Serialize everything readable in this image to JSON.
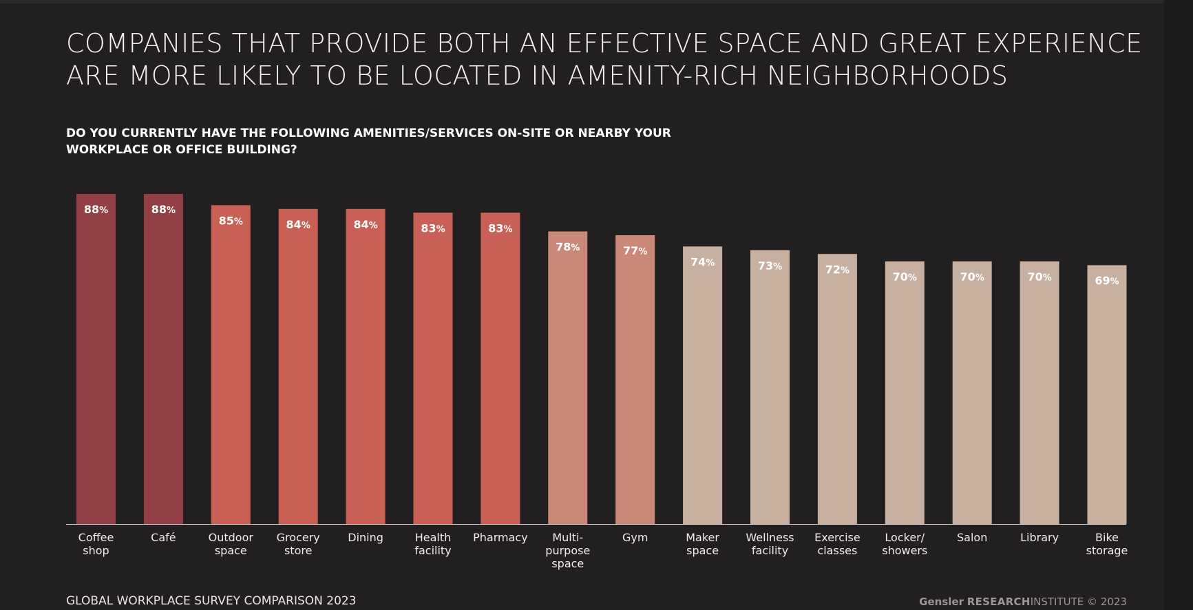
{
  "header": {
    "title_line1": "COMPANIES THAT PROVIDE BOTH AN EFFECTIVE SPACE AND GREAT EXPERIENCE",
    "title_line2": "ARE MORE LIKELY TO BE LOCATED IN AMENITY-RICH NEIGHBORHOODS",
    "question_line1": "DO YOU CURRENTLY HAVE THE FOLLOWING AMENITIES/SERVICES ON-SITE OR NEARBY YOUR",
    "question_line2": "WORKPLACE OR OFFICE BUILDING?"
  },
  "footer": {
    "source": "GLOBAL WORKPLACE SURVEY COMPARISON 2023",
    "brand": "Gensler",
    "research": "RESEARCH",
    "institute": "INSTITUTE",
    "copyright": "© 2023"
  },
  "colors": {
    "background": "#221f20",
    "dark_red": "#924045",
    "red": "#c86055",
    "salmon": "#ca8878",
    "tan": "#c7b09f",
    "baseline": "#cfcaca"
  },
  "chart_data": {
    "type": "bar",
    "title": "",
    "xlabel": "",
    "ylabel": "",
    "ylim": [
      0,
      88
    ],
    "grid": false,
    "value_suffix": "%",
    "categories": [
      [
        "Coffee",
        "shop"
      ],
      [
        "Café"
      ],
      [
        "Outdoor",
        "space"
      ],
      [
        "Grocery",
        "store"
      ],
      [
        "Dining"
      ],
      [
        "Health",
        "facility"
      ],
      [
        "Pharmacy"
      ],
      [
        "Multi-",
        "purpose",
        "space"
      ],
      [
        "Gym"
      ],
      [
        "Maker",
        "space"
      ],
      [
        "Wellness",
        "facility"
      ],
      [
        "Exercise",
        "classes"
      ],
      [
        "Locker/",
        "showers"
      ],
      [
        "Salon"
      ],
      [
        "Library"
      ],
      [
        "Bike",
        "storage"
      ]
    ],
    "values": [
      88,
      88,
      85,
      84,
      84,
      83,
      83,
      78,
      77,
      74,
      73,
      72,
      70,
      70,
      70,
      69
    ],
    "bar_colors": [
      "#924045",
      "#924045",
      "#c86055",
      "#c86055",
      "#c86055",
      "#c86055",
      "#c86055",
      "#ca8878",
      "#ca8878",
      "#c7b09f",
      "#c7b09f",
      "#c7b09f",
      "#c7b09f",
      "#c7b09f",
      "#c7b09f",
      "#c7b09f"
    ]
  }
}
